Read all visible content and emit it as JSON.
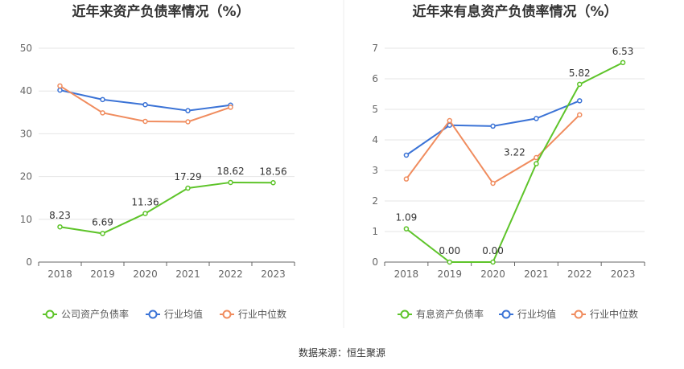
{
  "source_label": "数据来源：恒生聚源",
  "chart_data": [
    {
      "type": "line",
      "title": "近年来资产负债率情况（%）",
      "categories": [
        "2018",
        "2019",
        "2020",
        "2021",
        "2022",
        "2023"
      ],
      "ylim": [
        0,
        50
      ],
      "yticks": [
        0,
        10,
        20,
        30,
        40,
        50
      ],
      "grid": true,
      "legend_position": "bottom",
      "series": [
        {
          "name": "公司资产负债率",
          "color": "#5ec42a",
          "values": [
            8.23,
            6.69,
            11.36,
            17.29,
            18.62,
            18.56
          ],
          "labels": [
            "8.23",
            "6.69",
            "11.36",
            "17.29",
            "18.62",
            "18.56"
          ]
        },
        {
          "name": "行业均值",
          "color": "#3b73d6",
          "values": [
            40.2,
            38.0,
            36.8,
            35.4,
            36.7,
            null
          ]
        },
        {
          "name": "行业中位数",
          "color": "#f08c5e",
          "values": [
            41.2,
            34.9,
            32.9,
            32.8,
            36.2,
            null
          ]
        }
      ]
    },
    {
      "type": "line",
      "title": "近年来有息资产负债率情况（%）",
      "categories": [
        "2018",
        "2019",
        "2020",
        "2021",
        "2022",
        "2023"
      ],
      "ylim": [
        0,
        7
      ],
      "yticks": [
        0,
        1,
        2,
        3,
        4,
        5,
        6,
        7
      ],
      "grid": true,
      "legend_position": "bottom",
      "series": [
        {
          "name": "有息资产负债率",
          "color": "#5ec42a",
          "values": [
            1.09,
            0.0,
            0.0,
            3.22,
            5.82,
            6.53
          ],
          "labels": [
            "1.09",
            "0.00",
            "0.00",
            "3.22",
            "5.82",
            "6.53"
          ]
        },
        {
          "name": "行业均值",
          "color": "#3b73d6",
          "values": [
            3.5,
            4.48,
            4.45,
            4.7,
            5.28,
            null
          ]
        },
        {
          "name": "行业中位数",
          "color": "#f08c5e",
          "values": [
            2.72,
            4.63,
            2.58,
            3.42,
            4.82,
            null
          ]
        }
      ]
    }
  ]
}
